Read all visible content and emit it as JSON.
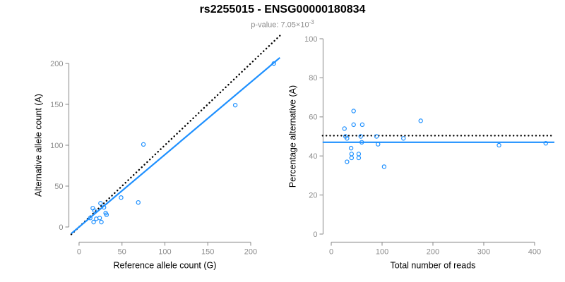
{
  "header": {
    "title": "rs2255015 - ENSG00000180834",
    "pvalue_prefix": "p-value: 7.05×10",
    "pvalue_exponent": "-3"
  },
  "colors": {
    "background": "#ffffff",
    "point": "#1E90FF",
    "fit_line": "#1E90FF",
    "reference_line": "#000000",
    "axis": "#9b9b9b",
    "tick_label": "#8c8c8c",
    "axis_title": "#000000",
    "subtitle": "#8c8c8c"
  },
  "chart_data": [
    {
      "id": "allele-counts",
      "type": "scatter",
      "xlabel": "Reference allele count (G)",
      "ylabel": "Alternative allele count (A)",
      "xticks": [
        0,
        50,
        100,
        150,
        200
      ],
      "yticks": [
        0,
        50,
        100,
        150,
        200
      ],
      "xlim": [
        -9,
        234
      ],
      "ylim": [
        -9,
        234
      ],
      "grid": false,
      "points": [
        [
          13,
          11
        ],
        [
          16,
          23
        ],
        [
          17,
          6
        ],
        [
          18,
          20
        ],
        [
          20,
          10
        ],
        [
          24,
          11
        ],
        [
          25,
          29
        ],
        [
          26,
          6
        ],
        [
          29,
          24
        ],
        [
          31,
          17
        ],
        [
          32,
          15
        ],
        [
          49,
          36
        ],
        [
          69,
          30
        ],
        [
          75,
          101
        ],
        [
          182,
          149
        ],
        [
          227,
          200
        ]
      ],
      "lines": [
        {
          "name": "expected-1-to-1-line",
          "style": "dotted",
          "color": "#000000",
          "slope": 1,
          "intercept": 0
        },
        {
          "name": "fitted-line",
          "style": "solid",
          "color": "#1E90FF",
          "slope": 0.885,
          "intercept": 0
        }
      ]
    },
    {
      "id": "percentage-vs-reads",
      "type": "scatter",
      "xlabel": "Total number of reads",
      "ylabel": "Percentage alternative (A)",
      "xticks": [
        0,
        100,
        200,
        300,
        400
      ],
      "yticks": [
        0,
        20,
        40,
        60,
        80,
        100
      ],
      "xlim": [
        -17,
        439
      ],
      "ylim": [
        -4,
        104
      ],
      "grid": false,
      "points": [
        [
          26,
          54
        ],
        [
          28,
          50
        ],
        [
          31,
          49
        ],
        [
          31,
          37
        ],
        [
          39,
          44
        ],
        [
          40,
          41
        ],
        [
          40,
          39
        ],
        [
          44,
          63
        ],
        [
          44,
          56
        ],
        [
          54,
          41
        ],
        [
          54,
          39
        ],
        [
          58,
          50
        ],
        [
          60,
          47
        ],
        [
          61,
          56
        ],
        [
          89,
          50
        ],
        [
          92,
          46
        ],
        [
          104,
          34.5
        ],
        [
          142,
          49
        ],
        [
          176,
          58
        ],
        [
          330,
          45.5
        ],
        [
          422,
          46.5
        ]
      ],
      "lines": [
        {
          "name": "expected-50-percent-line",
          "style": "dotted",
          "color": "#000000",
          "slope": 0,
          "intercept": 50.4
        },
        {
          "name": "fitted-line",
          "style": "solid",
          "color": "#1E90FF",
          "slope": 0,
          "intercept": 47
        }
      ]
    }
  ]
}
